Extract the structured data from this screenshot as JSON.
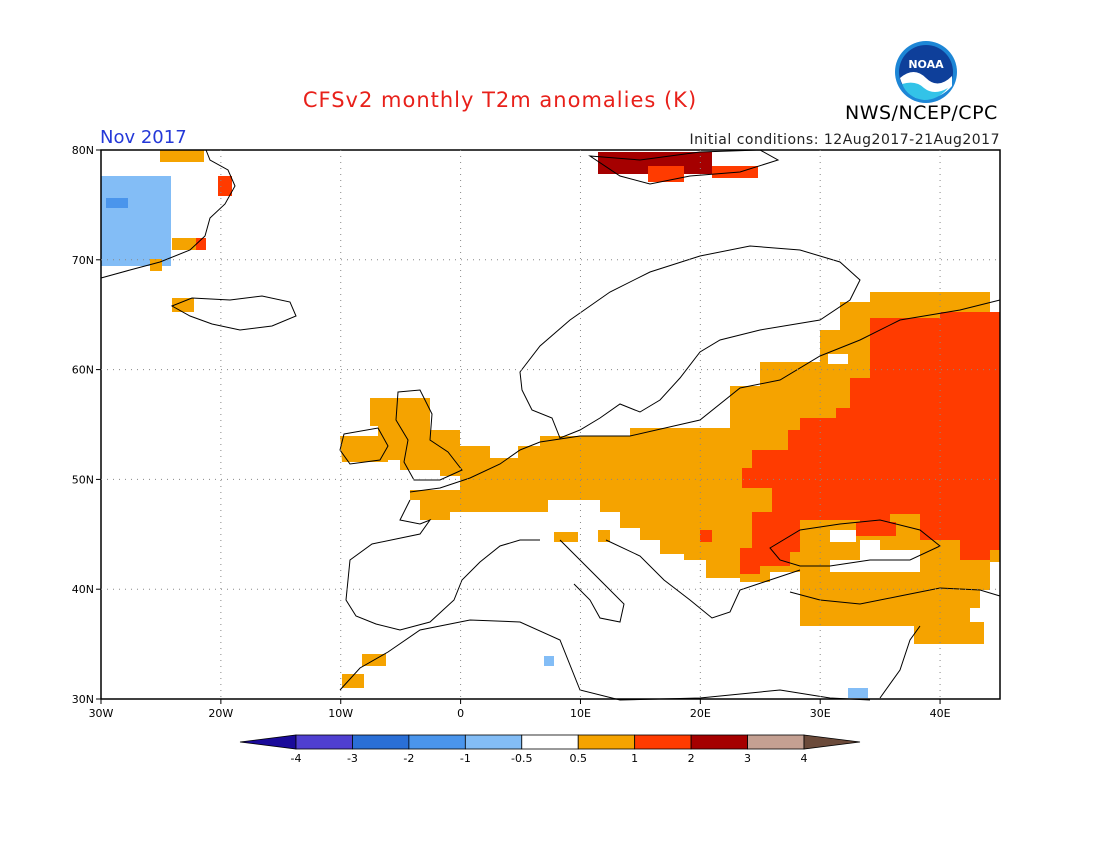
{
  "header": {
    "title": "CFSv2 monthly T2m anomalies (K)",
    "organization": "NWS/NCEP/CPC",
    "logo_text": "NOAA",
    "month": "Nov 2017",
    "initial_conditions": "Initial conditions: 12Aug2017-21Aug2017"
  },
  "map": {
    "region": "Europe",
    "lon_range": [
      -30,
      45
    ],
    "lat_range": [
      30,
      80
    ],
    "lon_ticks": [
      "30W",
      "20W",
      "10W",
      "0",
      "10E",
      "20E",
      "30E",
      "40E"
    ],
    "lat_ticks": [
      "80N",
      "70N",
      "60N",
      "50N",
      "40N",
      "30N"
    ]
  },
  "legend": {
    "labels": [
      "-4",
      "-3",
      "-2",
      "-1",
      "-0.5",
      "0.5",
      "1",
      "2",
      "3",
      "4"
    ],
    "colors": [
      "#1a0a9a",
      "#4f3fd0",
      "#2a6fd6",
      "#4a95ec",
      "#83bdf6",
      "#ffffff",
      "#f5a300",
      "#ff3b00",
      "#a50000",
      "#c4a092",
      "#6b4a3a"
    ]
  }
}
